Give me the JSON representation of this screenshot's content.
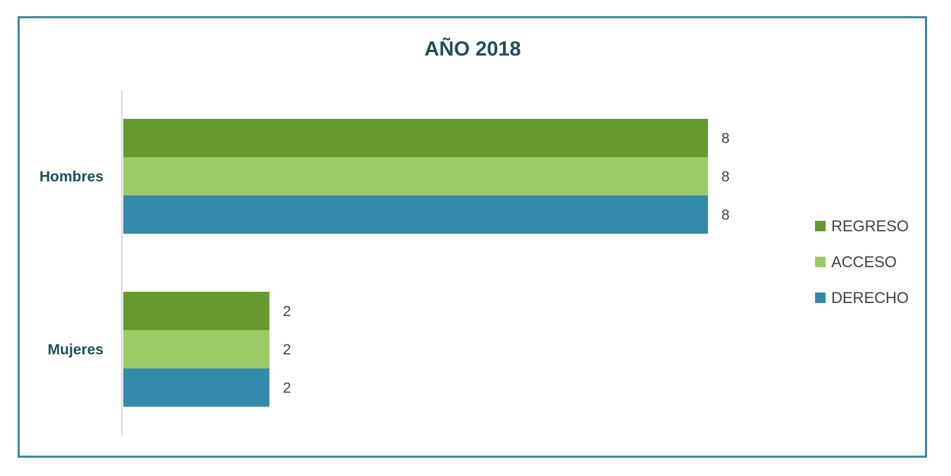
{
  "chart_data": {
    "type": "bar",
    "orientation": "horizontal",
    "title": "AÑO 2018",
    "categories": [
      "Hombres",
      "Mujeres"
    ],
    "series": [
      {
        "name": "REGRESO",
        "values": [
          8,
          2
        ],
        "color": "#66992f"
      },
      {
        "name": "ACCESO",
        "values": [
          8,
          2
        ],
        "color": "#9bcb66"
      },
      {
        "name": "DERECHO",
        "values": [
          8,
          2
        ],
        "color": "#338aab"
      }
    ],
    "xlim": [
      0,
      8
    ],
    "grid": false,
    "data_labels": true,
    "legend_position": "right"
  },
  "colors": {
    "frame_border": "#3a8aa5",
    "title": "#1f4e5f",
    "axis_line": "#d9d9d9"
  }
}
